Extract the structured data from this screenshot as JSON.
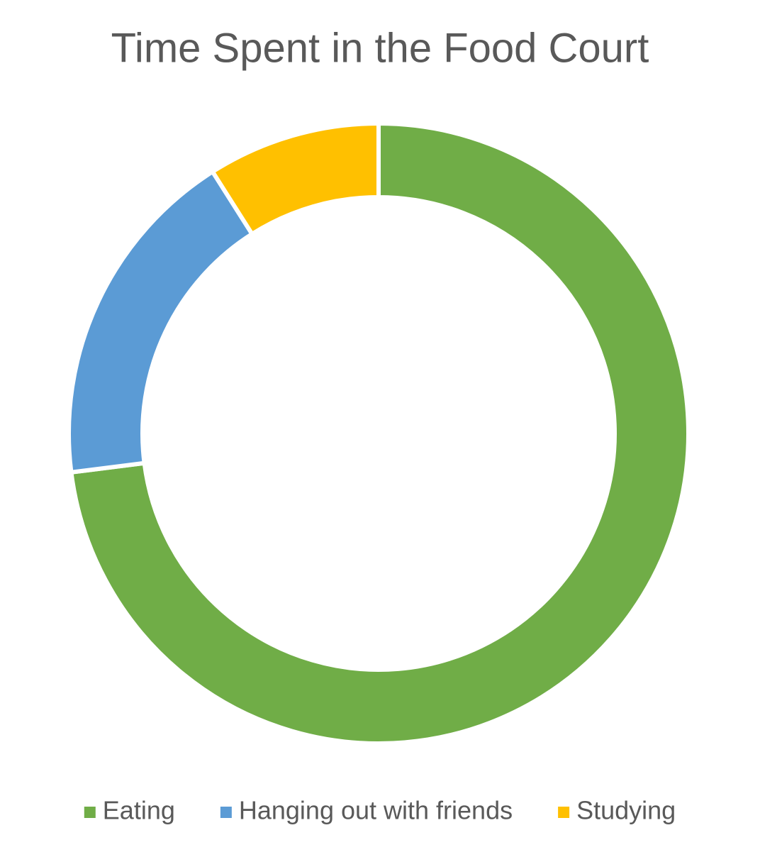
{
  "chart_data": {
    "type": "doughnut",
    "title": "Time Spent in the Food Court",
    "categories": [
      "Eating",
      "Hanging out with friends",
      "Studying"
    ],
    "values": [
      73,
      18,
      9
    ],
    "colors": [
      "#70ad47",
      "#5b9bd5",
      "#ffc000"
    ],
    "legend": "bottom"
  }
}
